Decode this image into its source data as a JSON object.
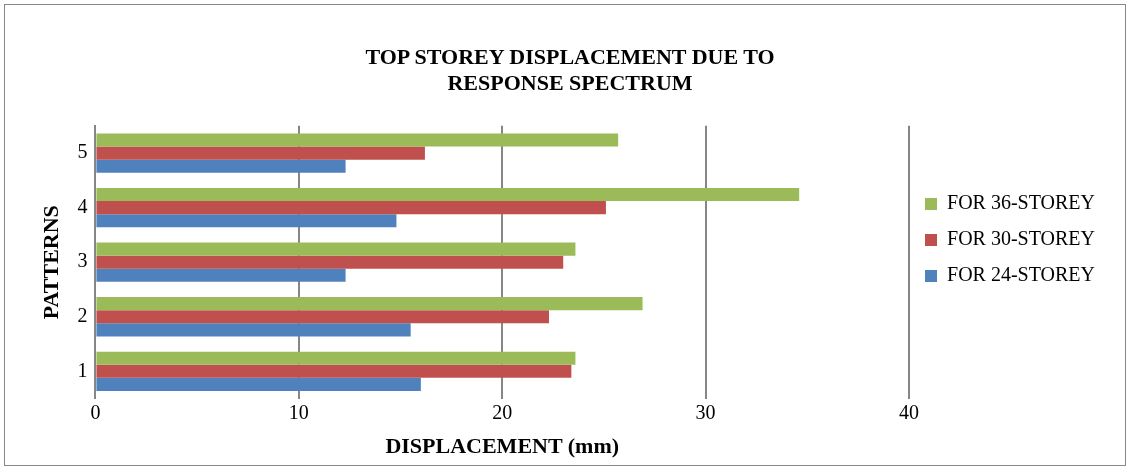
{
  "chart_data": {
    "type": "bar",
    "orientation": "horizontal",
    "title": "TOP STOREY DISPLACEMENT DUE TO RESPONSE SPECTRUM",
    "xlabel": "DISPLACEMENT (mm)",
    "ylabel": "PATTERNS",
    "categories": [
      "5",
      "4",
      "3",
      "2",
      "1"
    ],
    "series": [
      {
        "name": "FOR 36-STOREY",
        "color": "#9bbb59",
        "values": [
          25.7,
          34.6,
          23.6,
          26.9,
          23.6
        ]
      },
      {
        "name": "FOR 30-STOREY",
        "color": "#c0504d",
        "values": [
          16.2,
          25.1,
          23.0,
          22.3,
          23.4
        ]
      },
      {
        "name": "FOR 24-STOREY",
        "color": "#4f81bd",
        "values": [
          12.3,
          14.8,
          12.3,
          15.5,
          16.0
        ]
      }
    ],
    "xlim": [
      0,
      40
    ],
    "xticks": [
      0,
      10,
      20,
      30,
      40
    ],
    "grid": "x",
    "legend": "right"
  }
}
